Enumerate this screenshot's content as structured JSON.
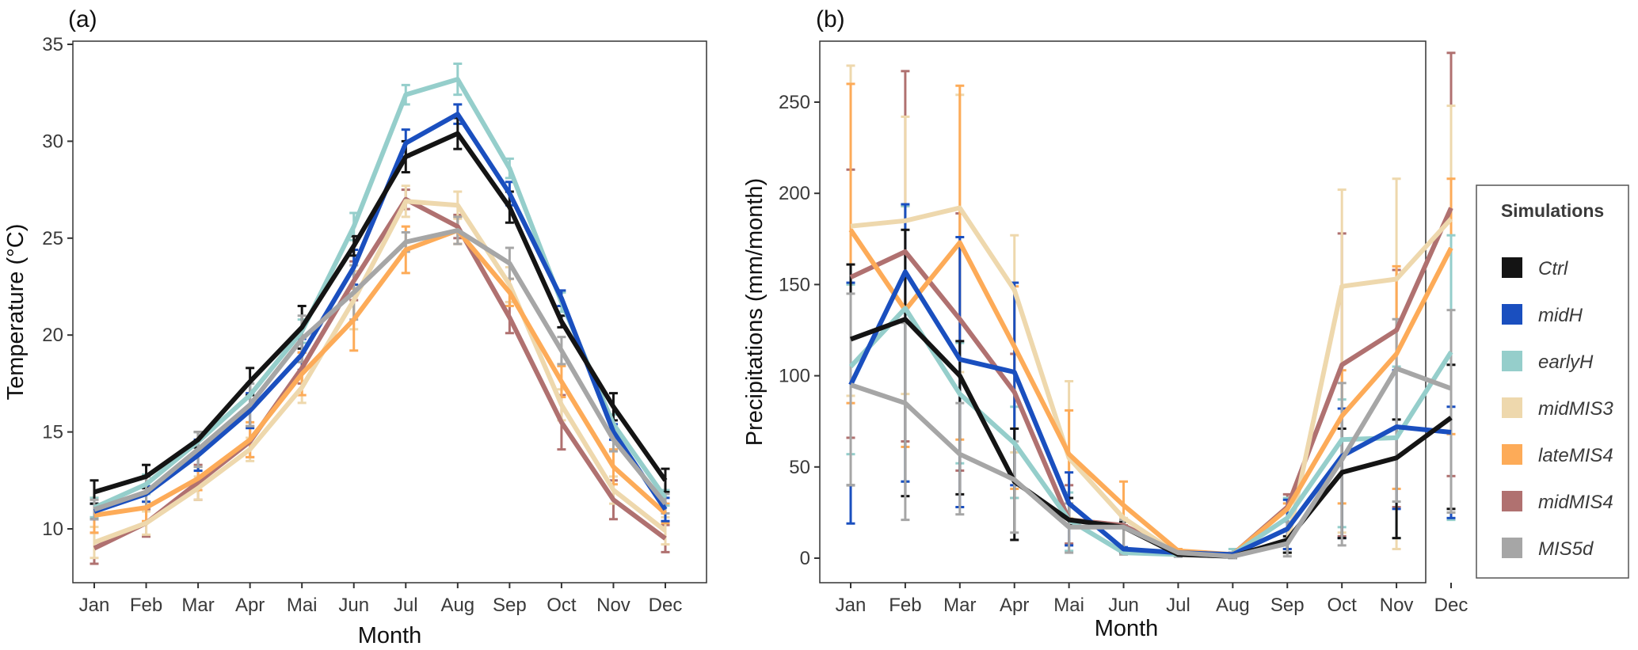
{
  "chart_data": [
    {
      "type": "line",
      "panel_label": "(a)",
      "title": "",
      "xlabel": "Month",
      "ylabel": "Temperature (°C)",
      "categories": [
        "Jan",
        "Feb",
        "Mar",
        "Apr",
        "Mai",
        "Jun",
        "Jul",
        "Aug",
        "Sep",
        "Oct",
        "Nov",
        "Dec"
      ],
      "ylim": [
        7.3,
        35.2
      ],
      "yticks": [
        10,
        15,
        20,
        25,
        30,
        35
      ],
      "ytick_labels": [
        "10",
        "15",
        "20",
        "25",
        "30",
        "35"
      ],
      "grid": false,
      "error_bars": true,
      "series": [
        {
          "name": "Ctrl",
          "values": [
            11.9,
            12.7,
            14.6,
            17.6,
            20.4,
            24.6,
            29.2,
            30.4,
            26.6,
            20.7,
            16.3,
            12.5
          ],
          "err": [
            0.6,
            0.6,
            0.4,
            0.7,
            1.1,
            0.5,
            0.8,
            0.8,
            0.8,
            0.3,
            0.7,
            0.6
          ]
        },
        {
          "name": "midH",
          "values": [
            10.9,
            11.8,
            13.8,
            16.1,
            19.0,
            23.5,
            29.9,
            31.4,
            27.3,
            21.9,
            15.0,
            11.0
          ],
          "err": [
            0.4,
            0.4,
            0.8,
            0.9,
            0.8,
            0.9,
            0.7,
            0.5,
            0.6,
            0.4,
            0.4,
            0.6
          ]
        },
        {
          "name": "earlyH",
          "values": [
            11.1,
            12.3,
            14.5,
            16.9,
            20.2,
            25.6,
            32.4,
            33.2,
            28.6,
            21.7,
            15.4,
            11.6
          ],
          "err": [
            0.5,
            0.5,
            0.5,
            0.6,
            0.6,
            0.7,
            0.5,
            0.8,
            0.5,
            0.5,
            0.5,
            0.4
          ]
        },
        {
          "name": "midMIS3",
          "values": [
            9.3,
            10.3,
            12.1,
            14.1,
            17.3,
            21.8,
            26.9,
            26.7,
            22.6,
            16.4,
            12.0,
            9.9
          ],
          "err": [
            0.8,
            0.6,
            0.6,
            0.6,
            0.8,
            1.5,
            0.8,
            0.7,
            0.9,
            0.8,
            0.7,
            0.7
          ]
        },
        {
          "name": "lateMIS4",
          "values": [
            10.7,
            11.1,
            12.6,
            14.6,
            18.0,
            20.8,
            24.4,
            25.4,
            22.2,
            17.6,
            13.2,
            10.8
          ],
          "err": [
            0.9,
            0.7,
            0.6,
            0.9,
            1.1,
            1.6,
            1.2,
            0.7,
            0.7,
            0.8,
            0.9,
            0.5
          ]
        },
        {
          "name": "midMIS4",
          "values": [
            9.0,
            10.3,
            12.4,
            14.5,
            18.3,
            22.8,
            27.0,
            25.6,
            20.9,
            15.5,
            11.5,
            9.5
          ],
          "err": [
            0.8,
            0.7,
            0.9,
            0.8,
            0.8,
            1.0,
            0.5,
            0.6,
            0.8,
            1.4,
            1.0,
            0.7
          ]
        },
        {
          "name": "MIS5d",
          "values": [
            11.0,
            11.9,
            14.1,
            16.4,
            19.8,
            22.2,
            24.8,
            25.4,
            23.7,
            19.2,
            14.6,
            11.3
          ],
          "err": [
            0.5,
            0.8,
            0.9,
            1.1,
            1.2,
            1.4,
            0.5,
            0.7,
            0.8,
            0.7,
            0.6,
            0.5
          ]
        }
      ]
    },
    {
      "type": "line",
      "panel_label": "(b)",
      "title": "",
      "xlabel": "Month",
      "ylabel": "Precipitations (mm/month)",
      "categories": [
        "Jan",
        "Feb",
        "Mar",
        "Apr",
        "Mai",
        "Jun",
        "Jul",
        "Aug",
        "Sep",
        "Oct",
        "Nov",
        "Dec"
      ],
      "ylim": [
        -13,
        282
      ],
      "yticks": [
        0,
        50,
        100,
        150,
        200,
        250
      ],
      "ytick_labels": [
        "0",
        "50",
        "100",
        "150",
        "200",
        "250"
      ],
      "grid": false,
      "error_bars": true,
      "series": [
        {
          "name": "Ctrl",
          "values": [
            120,
            131,
            100,
            42,
            21,
            17,
            2,
            1,
            10,
            47,
            55,
            77
          ],
          "lo": [
            40,
            34,
            35,
            10,
            18,
            3,
            1,
            0,
            3,
            11,
            11,
            27
          ],
          "hi": [
            161,
            180,
            119,
            71,
            33,
            20,
            4,
            2,
            12,
            71,
            76,
            106
          ]
        },
        {
          "name": "midH",
          "values": [
            95,
            157,
            109,
            102,
            30,
            5,
            3,
            2,
            16,
            56,
            72,
            69
          ],
          "lo": [
            19,
            42,
            28,
            40,
            7,
            3,
            1,
            0,
            5,
            11,
            27,
            22
          ],
          "hi": [
            151,
            194,
            176,
            151,
            47,
            6,
            4,
            3,
            32,
            82,
            103,
            83
          ]
        },
        {
          "name": "earlyH",
          "values": [
            105,
            137,
            90,
            63,
            21,
            3,
            2,
            2,
            22,
            65,
            66,
            113
          ],
          "lo": [
            57,
            42,
            52,
            33,
            4,
            3,
            1,
            0,
            3,
            17,
            11,
            21
          ],
          "hi": [
            150,
            193,
            118,
            83,
            36,
            5,
            3,
            5,
            33,
            87,
            105,
            177
          ]
        },
        {
          "name": "midMIS3",
          "values": [
            182,
            185,
            192,
            147,
            55,
            22,
            2,
            2,
            8,
            149,
            153,
            186
          ],
          "lo": [
            89,
            90,
            102,
            58,
            22,
            4,
            1,
            0,
            3,
            14,
            5,
            25
          ],
          "hi": [
            270,
            242,
            254,
            177,
            97,
            22,
            3,
            2,
            16,
            202,
            208,
            248
          ]
        },
        {
          "name": "lateMIS4",
          "values": [
            180,
            136,
            173,
            116,
            57,
            29,
            4,
            2,
            27,
            78,
            112,
            170
          ],
          "lo": [
            85,
            61,
            65,
            38,
            18,
            4,
            1,
            0,
            3,
            30,
            38,
            68
          ],
          "hi": [
            260,
            193,
            259,
            149,
            81,
            42,
            5,
            3,
            30,
            103,
            160,
            208
          ]
        },
        {
          "name": "midMIS4",
          "values": [
            154,
            168,
            131,
            91,
            21,
            18,
            3,
            2,
            28,
            106,
            125,
            192
          ],
          "lo": [
            66,
            64,
            48,
            33,
            8,
            3,
            1,
            0,
            5,
            12,
            28,
            45
          ],
          "hi": [
            213,
            267,
            189,
            112,
            40,
            18,
            4,
            3,
            35,
            178,
            158,
            277
          ]
        },
        {
          "name": "MIS5d",
          "values": [
            95,
            85,
            57,
            43,
            17,
            17,
            3,
            1,
            8,
            54,
            104,
            93
          ],
          "lo": [
            40,
            21,
            24,
            14,
            3,
            2,
            1,
            0,
            1,
            7,
            31,
            25
          ],
          "hi": [
            145,
            129,
            85,
            64,
            30,
            21,
            4,
            3,
            20,
            96,
            131,
            136
          ]
        }
      ]
    }
  ],
  "legend": {
    "title": "Simulations",
    "placement": "right",
    "items": [
      {
        "label": "Ctrl",
        "color": "#141414"
      },
      {
        "label": "midH",
        "color": "#1a4fbf"
      },
      {
        "label": "earlyH",
        "color": "#95cecb"
      },
      {
        "label": "midMIS3",
        "color": "#eed8ad"
      },
      {
        "label": "lateMIS4",
        "color": "#fdab58"
      },
      {
        "label": "midMIS4",
        "color": "#b07170"
      },
      {
        "label": "MIS5d",
        "color": "#a6a6a6"
      }
    ]
  },
  "draw_order": [
    "midMIS4",
    "midMIS3",
    "lateMIS4",
    "earlyH",
    "midH",
    "Ctrl",
    "MIS5d"
  ]
}
